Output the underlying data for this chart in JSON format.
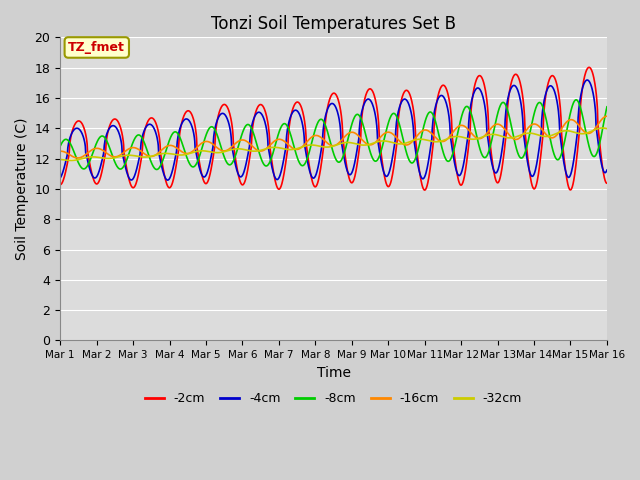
{
  "title": "Tonzi Soil Temperatures Set B",
  "xlabel": "Time",
  "ylabel": "Soil Temperature (C)",
  "ylim": [
    0,
    20
  ],
  "yticks": [
    0,
    2,
    4,
    6,
    8,
    10,
    12,
    14,
    16,
    18,
    20
  ],
  "x_tick_labels": [
    "Mar 1",
    "Mar 2",
    "Mar 3",
    "Mar 4",
    "Mar 5",
    "Mar 6",
    "Mar 7",
    "Mar 8",
    "Mar 9",
    "Mar 10",
    "Mar 11",
    "Mar 12",
    "Mar 13",
    "Mar 14",
    "Mar 15",
    "Mar 16"
  ],
  "annotation_text": "TZ_fmet",
  "annotation_color": "#cc0000",
  "annotation_bg": "#ffffcc",
  "annotation_border": "#999900",
  "series_colors": [
    "#ff0000",
    "#0000cc",
    "#00cc00",
    "#ff8800",
    "#cccc00"
  ],
  "series_labels": [
    "-2cm",
    "-4cm",
    "-8cm",
    "-16cm",
    "-32cm"
  ],
  "fig_bg": "#e8e8e8",
  "plot_bg": "#dcdcdc",
  "grid_color": "#ffffff",
  "linewidth": 1.2,
  "days": 15
}
